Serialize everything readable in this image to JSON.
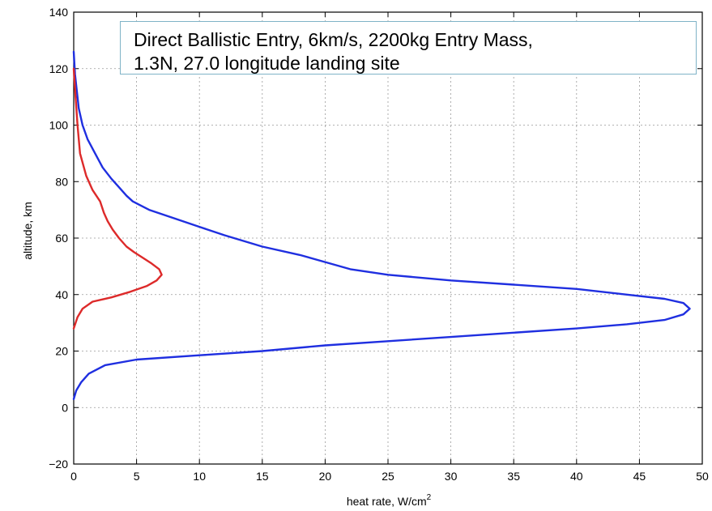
{
  "chart_data": {
    "type": "line",
    "title": "",
    "xlabel": "heat rate, W/cm",
    "xlabel_superscript": "2",
    "ylabel": "altitude, km",
    "xlim": [
      0,
      50
    ],
    "ylim": [
      -20,
      140
    ],
    "xticks": [
      "0",
      "5",
      "10",
      "15",
      "20",
      "25",
      "30",
      "35",
      "40",
      "45",
      "50"
    ],
    "yticks": [
      "-20",
      "0",
      "20",
      "40",
      "60",
      "80",
      "100",
      "120",
      "140"
    ],
    "grid": true,
    "annotation": {
      "line1": "Direct Ballistic Entry, 6km/s,  2200kg Entry Mass,",
      "line2": "1.3N, 27.0 longitude landing site"
    },
    "series": [
      {
        "color": "#1f2fe0",
        "points": [
          [
            0,
            3
          ],
          [
            0.2,
            6
          ],
          [
            0.6,
            9
          ],
          [
            1.2,
            12
          ],
          [
            2.5,
            15
          ],
          [
            5,
            17
          ],
          [
            10,
            18.5
          ],
          [
            15,
            20
          ],
          [
            20,
            22
          ],
          [
            25,
            23.5
          ],
          [
            30,
            25
          ],
          [
            35,
            26.5
          ],
          [
            40,
            28
          ],
          [
            44,
            29.5
          ],
          [
            47,
            31
          ],
          [
            48.5,
            33
          ],
          [
            49,
            35
          ],
          [
            48.5,
            37
          ],
          [
            47,
            38.5
          ],
          [
            44,
            40
          ],
          [
            40,
            42
          ],
          [
            35,
            43.5
          ],
          [
            30,
            45
          ],
          [
            25,
            47
          ],
          [
            22,
            49
          ],
          [
            20,
            51.5
          ],
          [
            18,
            54
          ],
          [
            15,
            57
          ],
          [
            12,
            61
          ],
          [
            10,
            64
          ],
          [
            8,
            67
          ],
          [
            6,
            70
          ],
          [
            4.7,
            73
          ],
          [
            4.2,
            75
          ],
          [
            3.6,
            78
          ],
          [
            3,
            81
          ],
          [
            2.3,
            85
          ],
          [
            1.7,
            90
          ],
          [
            1.1,
            95
          ],
          [
            0.7,
            100
          ],
          [
            0.4,
            106
          ],
          [
            0.25,
            112
          ],
          [
            0.1,
            118
          ],
          [
            0,
            126
          ]
        ]
      },
      {
        "color": "#dd2a2a",
        "points": [
          [
            0,
            28
          ],
          [
            0.3,
            32
          ],
          [
            0.7,
            35
          ],
          [
            1.5,
            37.5
          ],
          [
            3,
            39
          ],
          [
            4.5,
            41
          ],
          [
            5.8,
            43
          ],
          [
            6.6,
            45
          ],
          [
            7,
            47
          ],
          [
            6.8,
            49
          ],
          [
            6.2,
            51
          ],
          [
            5.5,
            53
          ],
          [
            4.8,
            55
          ],
          [
            4.2,
            57
          ],
          [
            3.6,
            60
          ],
          [
            3.1,
            63
          ],
          [
            2.7,
            66
          ],
          [
            2.4,
            69
          ],
          [
            2.1,
            73
          ],
          [
            1.5,
            77
          ],
          [
            1,
            82
          ],
          [
            0.5,
            90
          ],
          [
            0.3,
            100
          ],
          [
            0.15,
            110
          ],
          [
            0,
            120
          ]
        ]
      }
    ]
  }
}
